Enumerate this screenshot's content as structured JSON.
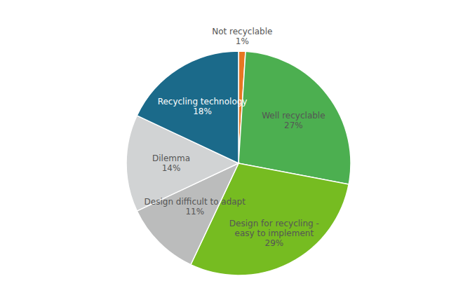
{
  "chart_data": {
    "type": "pie",
    "categories": [
      "Not recyclable",
      "Well recyclable",
      "Design for recycling -\neasy to implement",
      "Design difficult to adapt",
      "Dilemma",
      "Recycling technology"
    ],
    "values": [
      1,
      27,
      29,
      11,
      14,
      18
    ],
    "value_labels": [
      "1%",
      "27%",
      "29%",
      "11%",
      "14%",
      "18%"
    ],
    "colors": [
      "#E87722",
      "#4CAF50",
      "#76BC21",
      "#BBBCBC",
      "#D1D3D4",
      "#1B6A8A"
    ],
    "data_labels": true
  }
}
